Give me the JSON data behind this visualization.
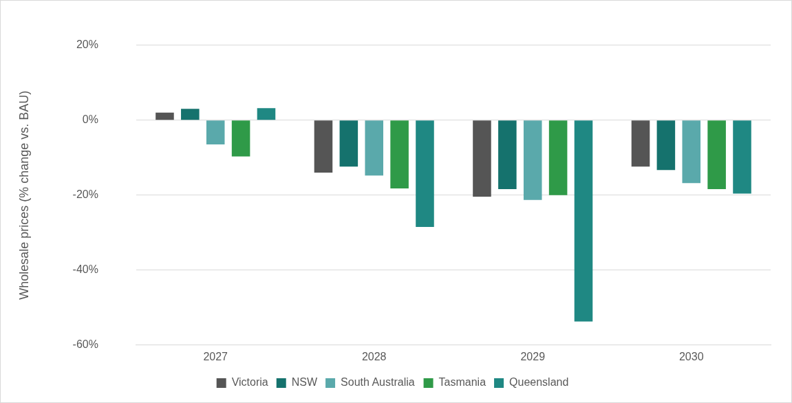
{
  "chart_data": {
    "type": "bar",
    "ylabel": "Wholesale prices (% change vs. BAU)",
    "categories": [
      "2027",
      "2028",
      "2029",
      "2030"
    ],
    "series": [
      {
        "name": "Victoria",
        "color": "#555555",
        "values": [
          2,
          -14,
          -20.4,
          -12.4
        ]
      },
      {
        "name": "NSW",
        "color": "#15726d",
        "values": [
          3,
          -12.4,
          -18.4,
          -13.3
        ]
      },
      {
        "name": "South Australia",
        "color": "#5aa9ab",
        "values": [
          -6.5,
          -14.8,
          -21.3,
          -16.8
        ]
      },
      {
        "name": "Tasmania",
        "color": "#2f9a48",
        "values": [
          -9.7,
          -18.2,
          -20,
          -18.4
        ]
      },
      {
        "name": "Queensland",
        "color": "#1f8883",
        "values": [
          3.2,
          -28.5,
          -53.7,
          -19.6
        ]
      }
    ],
    "ylim": [
      -60,
      20
    ],
    "yticks": [
      {
        "value": -60,
        "label": "-60%"
      },
      {
        "value": -40,
        "label": "-40%"
      },
      {
        "value": -20,
        "label": "-20%"
      },
      {
        "value": 0,
        "label": "0%"
      },
      {
        "value": 20,
        "label": "20%"
      }
    ],
    "grid": "y",
    "legend": "bottom"
  }
}
